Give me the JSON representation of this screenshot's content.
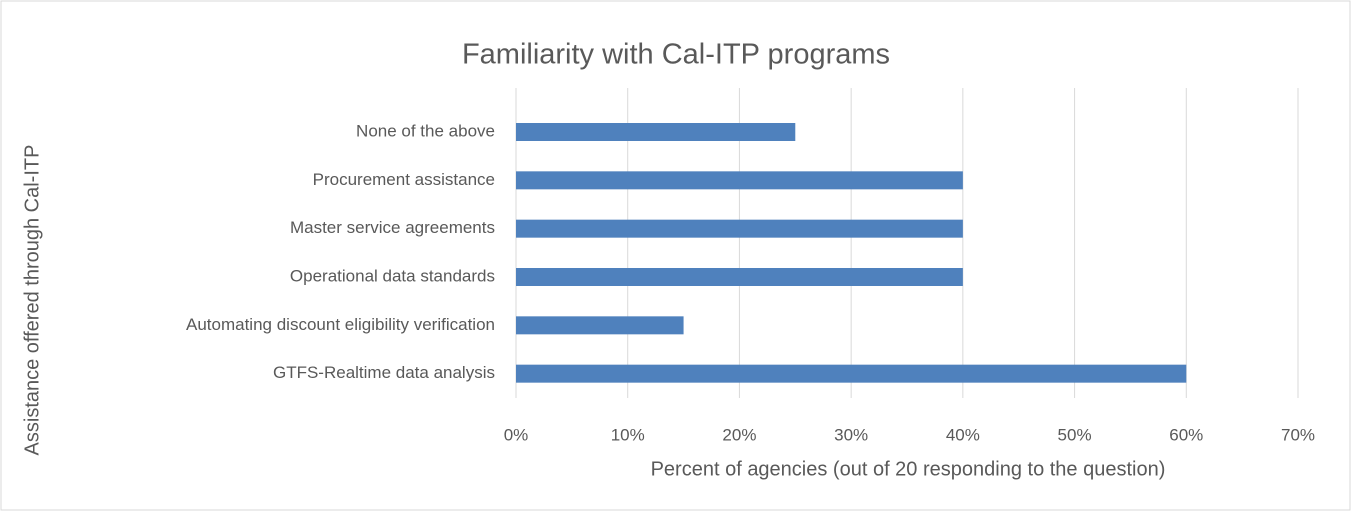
{
  "chart_data": {
    "type": "bar",
    "orientation": "horizontal",
    "title": "Familiarity with Cal-ITP programs",
    "xlabel": "Percent of agencies (out of 20 responding to the question)",
    "ylabel": "Assistance offered through Cal-ITP",
    "categories": [
      "None of the above",
      "Procurement assistance",
      "Master service agreements",
      "Operational data standards",
      "Automating discount eligibility verification",
      "GTFS-Realtime data analysis"
    ],
    "values": [
      25,
      40,
      40,
      40,
      15,
      60
    ],
    "color": "#4f81bd",
    "xlim": [
      0,
      70
    ],
    "xticks": [
      {
        "value": 0,
        "label": "0%"
      },
      {
        "value": 10,
        "label": "10%"
      },
      {
        "value": 20,
        "label": "20%"
      },
      {
        "value": 30,
        "label": "30%"
      },
      {
        "value": 40,
        "label": "40%"
      },
      {
        "value": 50,
        "label": "50%"
      },
      {
        "value": 60,
        "label": "60%"
      },
      {
        "value": 70,
        "label": "70%"
      }
    ],
    "grid": true
  }
}
